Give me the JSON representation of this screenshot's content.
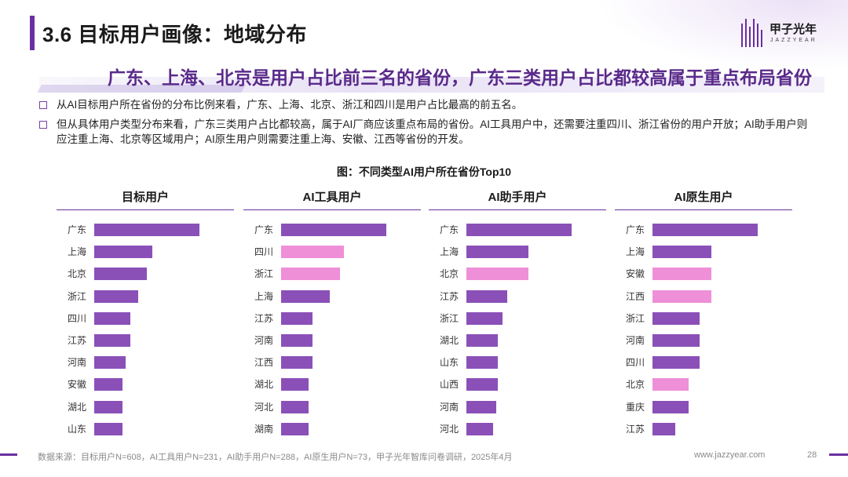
{
  "header": {
    "title": "3.6 目标用户画像：地域分布",
    "headline": "广东、上海、北京是用户占比前三名的省份，广东三类用户占比都较高属于重点布局省份"
  },
  "logo": {
    "name": "甲子光年",
    "sub": "JAZZYEAR",
    "icon": "brand-bars-icon"
  },
  "bullets": [
    "从AI目标用户所在省份的分布比例来看，广东、上海、北京、浙江和四川是用户占比最高的前五名。",
    "但从具体用户类型分布来看，广东三类用户占比都较高，属于AI厂商应该重点布局的省份。AI工具用户中，还需要注重四川、浙江省份的用户开放；AI助手用户则应注重上海、北京等区域用户；AI原生用户则需要注重上海、安徽、江西等省份的开发。"
  ],
  "colors": {
    "primary": "#8b50b8",
    "highlight": "#ee8fd8",
    "accent": "#6b2fa0"
  },
  "chart_data": {
    "title": "图：不同类型AI用户所在省份Top10",
    "type": "bar",
    "orientation": "horizontal",
    "charts": [
      {
        "title": "目标用户",
        "categories": [
          "广东",
          "上海",
          "北京",
          "浙江",
          "四川",
          "江苏",
          "河南",
          "安徽",
          "湖北",
          "山东"
        ],
        "values": [
          100,
          55,
          50,
          42,
          34,
          34,
          30,
          27,
          27,
          27
        ],
        "highlight": [
          false,
          false,
          false,
          false,
          false,
          false,
          false,
          false,
          false,
          false
        ]
      },
      {
        "title": "AI工具用户",
        "categories": [
          "广东",
          "四川",
          "浙江",
          "上海",
          "江苏",
          "河南",
          "江西",
          "湖北",
          "河北",
          "湖南"
        ],
        "values": [
          100,
          60,
          56,
          46,
          30,
          30,
          30,
          26,
          26,
          26
        ],
        "highlight": [
          false,
          true,
          true,
          false,
          false,
          false,
          false,
          false,
          false,
          false
        ]
      },
      {
        "title": "AI助手用户",
        "categories": [
          "广东",
          "上海",
          "北京",
          "江苏",
          "浙江",
          "湖北",
          "山东",
          "山西",
          "河南",
          "河北"
        ],
        "values": [
          100,
          59,
          59,
          39,
          34,
          30,
          30,
          30,
          28,
          25
        ],
        "highlight": [
          false,
          false,
          true,
          false,
          false,
          false,
          false,
          false,
          false,
          false
        ]
      },
      {
        "title": "AI原生用户",
        "categories": [
          "广东",
          "上海",
          "安徽",
          "江西",
          "浙江",
          "河南",
          "四川",
          "北京",
          "重庆",
          "江苏"
        ],
        "values": [
          100,
          56,
          56,
          56,
          45,
          45,
          45,
          34,
          34,
          22
        ],
        "highlight": [
          false,
          false,
          true,
          true,
          false,
          false,
          false,
          true,
          false,
          false
        ]
      }
    ]
  },
  "footer": {
    "source": "数据来源：目标用户N=608，AI工具用户N=231，AI助手用户N=288，AI原生用户N=73，甲子光年智库问卷调研，2025年4月",
    "url": "www.jazzyear.com",
    "page": "28"
  }
}
